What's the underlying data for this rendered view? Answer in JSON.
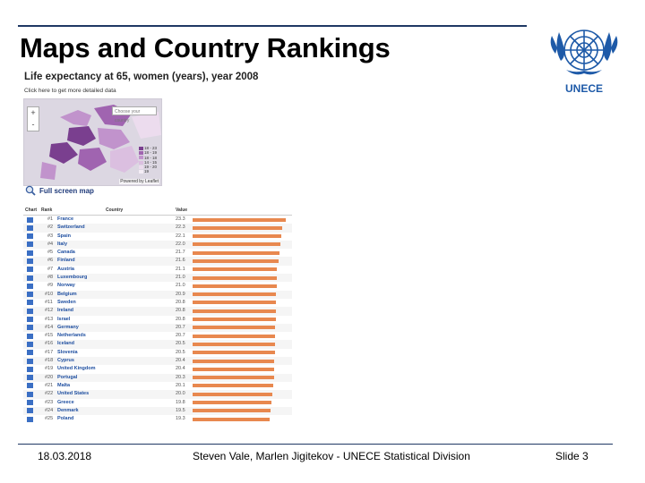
{
  "slide": {
    "title": "Maps and Country Rankings",
    "logo_text": "UNECE"
  },
  "screenshot": {
    "title": "Life expectancy at 65, women (years), year 2008",
    "link": "Click here to get more detailed data",
    "map": {
      "zoom_in": "+",
      "zoom_out": "-",
      "search_placeholder": "Choose your country",
      "legend": [
        {
          "label": "18 - 23",
          "color": "#7a3f8f"
        },
        {
          "label": "18 - 19",
          "color": "#a064b0"
        },
        {
          "label": "18 - 18",
          "color": "#c193cc"
        },
        {
          "label": "14 - 15",
          "color": "#dbbfe0"
        },
        {
          "label": "19 - 20",
          "color": "#ecdcee"
        },
        {
          "label": "19",
          "color": "#f5eef6"
        }
      ],
      "attribution": "Powered by Leaflet"
    },
    "fullscreen_label": "Full screen map",
    "table": {
      "headers": {
        "chart": "Chart",
        "rank": "Rank",
        "country": "Country",
        "value": "Value"
      },
      "rows": [
        {
          "rank": "#1",
          "country": "France",
          "value": 23.3
        },
        {
          "rank": "#2",
          "country": "Switzerland",
          "value": 22.3
        },
        {
          "rank": "#3",
          "country": "Spain",
          "value": 22.1
        },
        {
          "rank": "#4",
          "country": "Italy",
          "value": 22.0
        },
        {
          "rank": "#5",
          "country": "Canada",
          "value": 21.7
        },
        {
          "rank": "#6",
          "country": "Finland",
          "value": 21.6
        },
        {
          "rank": "#7",
          "country": "Austria",
          "value": 21.1
        },
        {
          "rank": "#8",
          "country": "Luxembourg",
          "value": 21.0
        },
        {
          "rank": "#9",
          "country": "Norway",
          "value": 21.0
        },
        {
          "rank": "#10",
          "country": "Belgium",
          "value": 20.9
        },
        {
          "rank": "#11",
          "country": "Sweden",
          "value": 20.8
        },
        {
          "rank": "#12",
          "country": "Ireland",
          "value": 20.8
        },
        {
          "rank": "#13",
          "country": "Israel",
          "value": 20.8
        },
        {
          "rank": "#14",
          "country": "Germany",
          "value": 20.7
        },
        {
          "rank": "#15",
          "country": "Netherlands",
          "value": 20.7
        },
        {
          "rank": "#16",
          "country": "Iceland",
          "value": 20.5
        },
        {
          "rank": "#17",
          "country": "Slovenia",
          "value": 20.5
        },
        {
          "rank": "#18",
          "country": "Cyprus",
          "value": 20.4
        },
        {
          "rank": "#19",
          "country": "United Kingdom",
          "value": 20.4
        },
        {
          "rank": "#20",
          "country": "Portugal",
          "value": 20.3
        },
        {
          "rank": "#21",
          "country": "Malta",
          "value": 20.1
        },
        {
          "rank": "#22",
          "country": "United States",
          "value": 20.0
        },
        {
          "rank": "#23",
          "country": "Greece",
          "value": 19.8
        },
        {
          "rank": "#24",
          "country": "Denmark",
          "value": 19.5
        },
        {
          "rank": "#25",
          "country": "Poland",
          "value": 19.3
        }
      ]
    }
  },
  "footer": {
    "date": "18.03.2018",
    "credit": "Steven Vale, Marlen Jigitekov - UNECE Statistical Division",
    "slide_number": "Slide 3"
  },
  "colors": {
    "bar": "#e8884f",
    "rule": "#1f3864",
    "logo": "#1e5aa8"
  }
}
